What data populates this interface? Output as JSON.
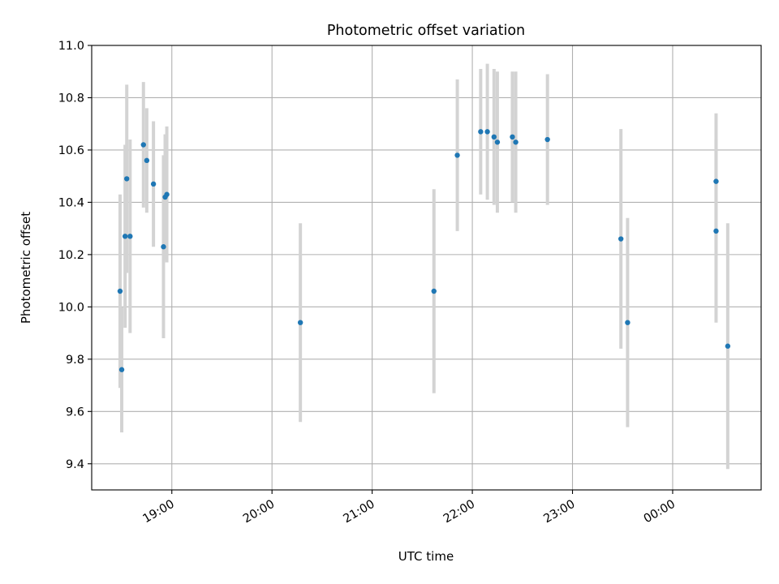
{
  "chart_data": {
    "type": "scatter",
    "title": "Photometric offset variation",
    "xlabel": "UTC time",
    "ylabel": "Photometric offset",
    "ylim": [
      9.3,
      11.0
    ],
    "xlim": [
      "18:12",
      "00:53"
    ],
    "x_ticks": [
      "19:00",
      "20:00",
      "21:00",
      "22:00",
      "23:00",
      "00:00"
    ],
    "y_ticks": [
      "9.4",
      "9.6",
      "9.8",
      "10.0",
      "10.2",
      "10.4",
      "10.6",
      "10.8",
      "11.0"
    ],
    "grid": true,
    "x_tick_rotation_deg": 30,
    "colors": {
      "point": "#1f77b4",
      "errorbar": "#d3d3d3",
      "grid": "#b0b0b0",
      "axis": "#000000"
    },
    "points": [
      {
        "x": "18:29",
        "y": 10.06,
        "err": 0.37
      },
      {
        "x": "18:30",
        "y": 9.76,
        "err": 0.24
      },
      {
        "x": "18:32",
        "y": 10.27,
        "err": 0.35
      },
      {
        "x": "18:33",
        "y": 10.49,
        "err": 0.36
      },
      {
        "x": "18:35",
        "y": 10.27,
        "err": 0.37
      },
      {
        "x": "18:43",
        "y": 10.62,
        "err": 0.24
      },
      {
        "x": "18:45",
        "y": 10.56,
        "err": 0.2
      },
      {
        "x": "18:49",
        "y": 10.47,
        "err": 0.24
      },
      {
        "x": "18:55",
        "y": 10.23,
        "err": 0.35
      },
      {
        "x": "18:56",
        "y": 10.42,
        "err": 0.24
      },
      {
        "x": "18:57",
        "y": 10.43,
        "err": 0.26
      },
      {
        "x": "20:17",
        "y": 9.94,
        "err": 0.38
      },
      {
        "x": "21:37",
        "y": 10.06,
        "err": 0.39
      },
      {
        "x": "21:51",
        "y": 10.58,
        "err": 0.29
      },
      {
        "x": "22:05",
        "y": 10.67,
        "err": 0.24
      },
      {
        "x": "22:09",
        "y": 10.67,
        "err": 0.26
      },
      {
        "x": "22:13",
        "y": 10.65,
        "err": 0.26
      },
      {
        "x": "22:15",
        "y": 10.63,
        "err": 0.27
      },
      {
        "x": "22:24",
        "y": 10.65,
        "err": 0.25
      },
      {
        "x": "22:26",
        "y": 10.63,
        "err": 0.27
      },
      {
        "x": "22:45",
        "y": 10.64,
        "err": 0.25
      },
      {
        "x": "23:29",
        "y": 10.26,
        "err": 0.42
      },
      {
        "x": "23:33",
        "y": 9.94,
        "err": 0.4
      },
      {
        "x": "00:26",
        "y": 10.48,
        "err": 0.26
      },
      {
        "x": "00:26",
        "y": 10.29,
        "err": 0.35
      },
      {
        "x": "00:33",
        "y": 9.85,
        "err": 0.47
      }
    ]
  }
}
